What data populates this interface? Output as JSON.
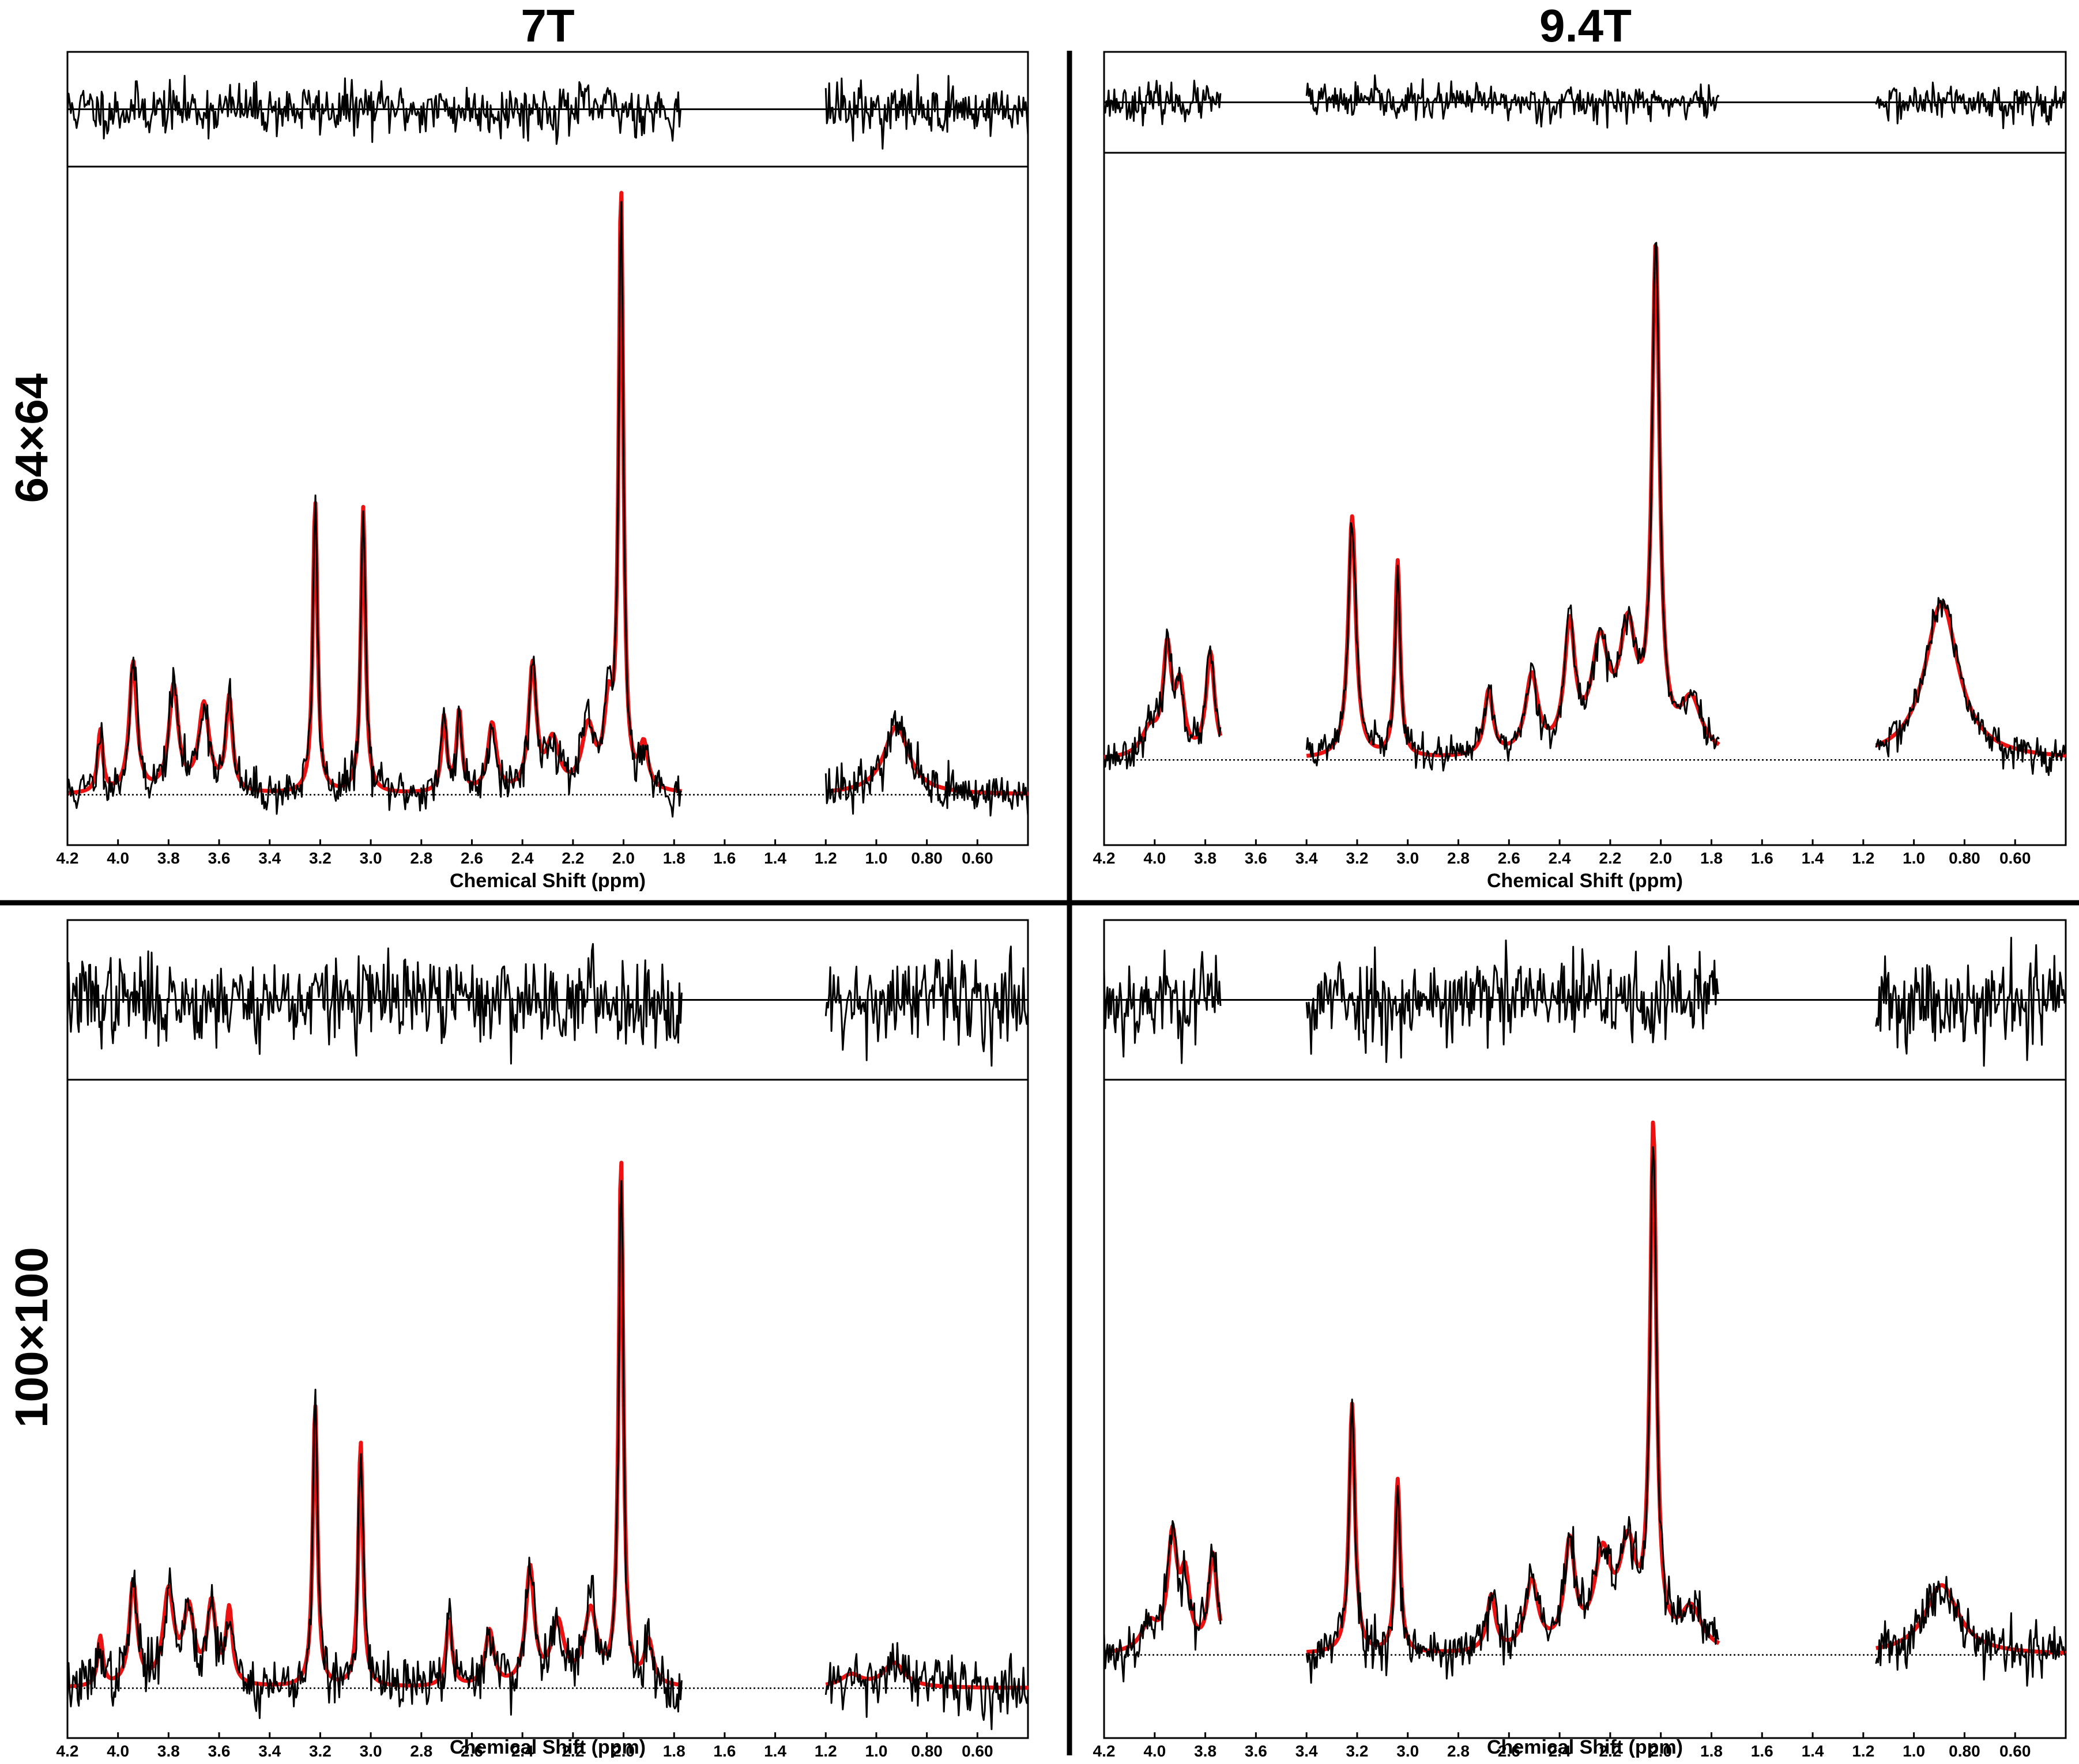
{
  "chart_data": {
    "type": "line",
    "column_titles": [
      "7T",
      "9.4T"
    ],
    "row_titles": [
      "64×64",
      "100×100"
    ],
    "xlabel": "Chemical Shift (ppm)",
    "xlim": [
      4.2,
      0.4
    ],
    "x_reversed": true,
    "ticks": [
      "4.2",
      "4.0",
      "3.8",
      "3.6",
      "3.4",
      "3.2",
      "3.0",
      "2.8",
      "2.6",
      "2.4",
      "2.2",
      "2.0",
      "1.8",
      "1.6",
      "1.4",
      "1.2",
      "1.0",
      "0.80",
      "0.60"
    ],
    "tick_values": [
      4.2,
      4.0,
      3.8,
      3.6,
      3.4,
      3.2,
      3.0,
      2.8,
      2.6,
      2.4,
      2.2,
      2.0,
      1.8,
      1.6,
      1.4,
      1.2,
      1.0,
      0.8,
      0.6
    ],
    "colors": {
      "measured": "#000000",
      "fit": "#ee1111",
      "grid": "#000000"
    },
    "series_roles": [
      "measured spectrum",
      "fitted spectrum",
      "residual",
      "baseline"
    ],
    "panels": [
      {
        "field": "7T",
        "matrix": "64×64",
        "seed": 11,
        "segments": [
          [
            4.2,
            1.77
          ],
          [
            1.2,
            0.4
          ]
        ],
        "baseline": 0.0,
        "ymin": -0.07,
        "ymax": 1.0,
        "residual_noise": 0.28,
        "spectrum_noise": 0.022,
        "peaks": [
          {
            "x": 4.07,
            "h": 0.1,
            "w": 0.012
          },
          {
            "x": 3.94,
            "h": 0.21,
            "w": 0.018
          },
          {
            "x": 3.78,
            "h": 0.17,
            "w": 0.022
          },
          {
            "x": 3.66,
            "h": 0.14,
            "w": 0.025
          },
          {
            "x": 3.56,
            "h": 0.15,
            "w": 0.015
          },
          {
            "x": 3.22,
            "h": 0.47,
            "w": 0.011
          },
          {
            "x": 3.03,
            "h": 0.46,
            "w": 0.011
          },
          {
            "x": 2.71,
            "h": 0.12,
            "w": 0.012
          },
          {
            "x": 2.65,
            "h": 0.13,
            "w": 0.012
          },
          {
            "x": 2.52,
            "h": 0.11,
            "w": 0.02
          },
          {
            "x": 2.36,
            "h": 0.2,
            "w": 0.018
          },
          {
            "x": 2.28,
            "h": 0.08,
            "w": 0.03
          },
          {
            "x": 2.14,
            "h": 0.1,
            "w": 0.03
          },
          {
            "x": 2.06,
            "h": 0.12,
            "w": 0.02
          },
          {
            "x": 2.01,
            "h": 0.96,
            "w": 0.011
          },
          {
            "x": 1.92,
            "h": 0.07,
            "w": 0.02
          },
          {
            "x": 0.92,
            "h": 0.11,
            "w": 0.06
          }
        ]
      },
      {
        "field": "9.4T",
        "matrix": "64×64",
        "seed": 23,
        "segments": [
          [
            4.2,
            3.74
          ],
          [
            3.4,
            1.77
          ],
          [
            1.15,
            0.4
          ]
        ],
        "baseline": 0.0,
        "ymin": -0.12,
        "ymax": 0.92,
        "residual_noise": 0.22,
        "spectrum_noise": 0.016,
        "peaks": [
          {
            "x": 4.02,
            "h": 0.04,
            "w": 0.04
          },
          {
            "x": 3.95,
            "h": 0.16,
            "w": 0.02
          },
          {
            "x": 3.9,
            "h": 0.1,
            "w": 0.02
          },
          {
            "x": 3.78,
            "h": 0.16,
            "w": 0.02
          },
          {
            "x": 3.22,
            "h": 0.37,
            "w": 0.018
          },
          {
            "x": 3.04,
            "h": 0.3,
            "w": 0.012
          },
          {
            "x": 2.68,
            "h": 0.1,
            "w": 0.02
          },
          {
            "x": 2.51,
            "h": 0.12,
            "w": 0.03
          },
          {
            "x": 2.36,
            "h": 0.19,
            "w": 0.025
          },
          {
            "x": 2.24,
            "h": 0.16,
            "w": 0.04
          },
          {
            "x": 2.13,
            "h": 0.18,
            "w": 0.04
          },
          {
            "x": 2.02,
            "h": 0.76,
            "w": 0.018
          },
          {
            "x": 1.88,
            "h": 0.08,
            "w": 0.05
          },
          {
            "x": 0.89,
            "h": 0.24,
            "w": 0.08
          }
        ]
      },
      {
        "field": "7T",
        "matrix": "100×100",
        "seed": 37,
        "segments": [
          [
            4.2,
            1.77
          ],
          [
            1.2,
            0.4
          ]
        ],
        "baseline": 0.0,
        "ymin": -0.07,
        "ymax": 0.98,
        "residual_noise": 0.34,
        "spectrum_noise": 0.028,
        "peaks": [
          {
            "x": 4.07,
            "h": 0.08,
            "w": 0.012
          },
          {
            "x": 3.94,
            "h": 0.17,
            "w": 0.018
          },
          {
            "x": 3.8,
            "h": 0.15,
            "w": 0.025
          },
          {
            "x": 3.72,
            "h": 0.12,
            "w": 0.025
          },
          {
            "x": 3.63,
            "h": 0.13,
            "w": 0.02
          },
          {
            "x": 3.56,
            "h": 0.12,
            "w": 0.015
          },
          {
            "x": 3.22,
            "h": 0.46,
            "w": 0.011
          },
          {
            "x": 3.04,
            "h": 0.4,
            "w": 0.011
          },
          {
            "x": 2.69,
            "h": 0.11,
            "w": 0.014
          },
          {
            "x": 2.53,
            "h": 0.09,
            "w": 0.02
          },
          {
            "x": 2.37,
            "h": 0.19,
            "w": 0.02
          },
          {
            "x": 2.26,
            "h": 0.1,
            "w": 0.03
          },
          {
            "x": 2.13,
            "h": 0.12,
            "w": 0.03
          },
          {
            "x": 2.01,
            "h": 0.86,
            "w": 0.011
          },
          {
            "x": 1.9,
            "h": 0.07,
            "w": 0.02
          },
          {
            "x": 1.1,
            "h": 0.02,
            "w": 0.05
          },
          {
            "x": 0.93,
            "h": 0.04,
            "w": 0.05
          }
        ]
      },
      {
        "field": "9.4T",
        "matrix": "100×100",
        "seed": 53,
        "segments": [
          [
            4.2,
            3.74
          ],
          [
            3.4,
            1.77
          ],
          [
            1.15,
            0.4
          ]
        ],
        "baseline": 0.0,
        "ymin": -0.11,
        "ymax": 0.82,
        "residual_noise": 0.36,
        "spectrum_noise": 0.024,
        "peaks": [
          {
            "x": 4.02,
            "h": 0.04,
            "w": 0.04
          },
          {
            "x": 3.93,
            "h": 0.16,
            "w": 0.022
          },
          {
            "x": 3.88,
            "h": 0.1,
            "w": 0.022
          },
          {
            "x": 3.77,
            "h": 0.14,
            "w": 0.02
          },
          {
            "x": 3.22,
            "h": 0.36,
            "w": 0.014
          },
          {
            "x": 3.04,
            "h": 0.25,
            "w": 0.012
          },
          {
            "x": 2.67,
            "h": 0.08,
            "w": 0.02
          },
          {
            "x": 2.51,
            "h": 0.1,
            "w": 0.03
          },
          {
            "x": 2.36,
            "h": 0.15,
            "w": 0.025
          },
          {
            "x": 2.23,
            "h": 0.13,
            "w": 0.04
          },
          {
            "x": 2.13,
            "h": 0.14,
            "w": 0.04
          },
          {
            "x": 2.03,
            "h": 0.74,
            "w": 0.015
          },
          {
            "x": 1.88,
            "h": 0.06,
            "w": 0.05
          },
          {
            "x": 0.89,
            "h": 0.1,
            "w": 0.08
          }
        ]
      }
    ]
  }
}
